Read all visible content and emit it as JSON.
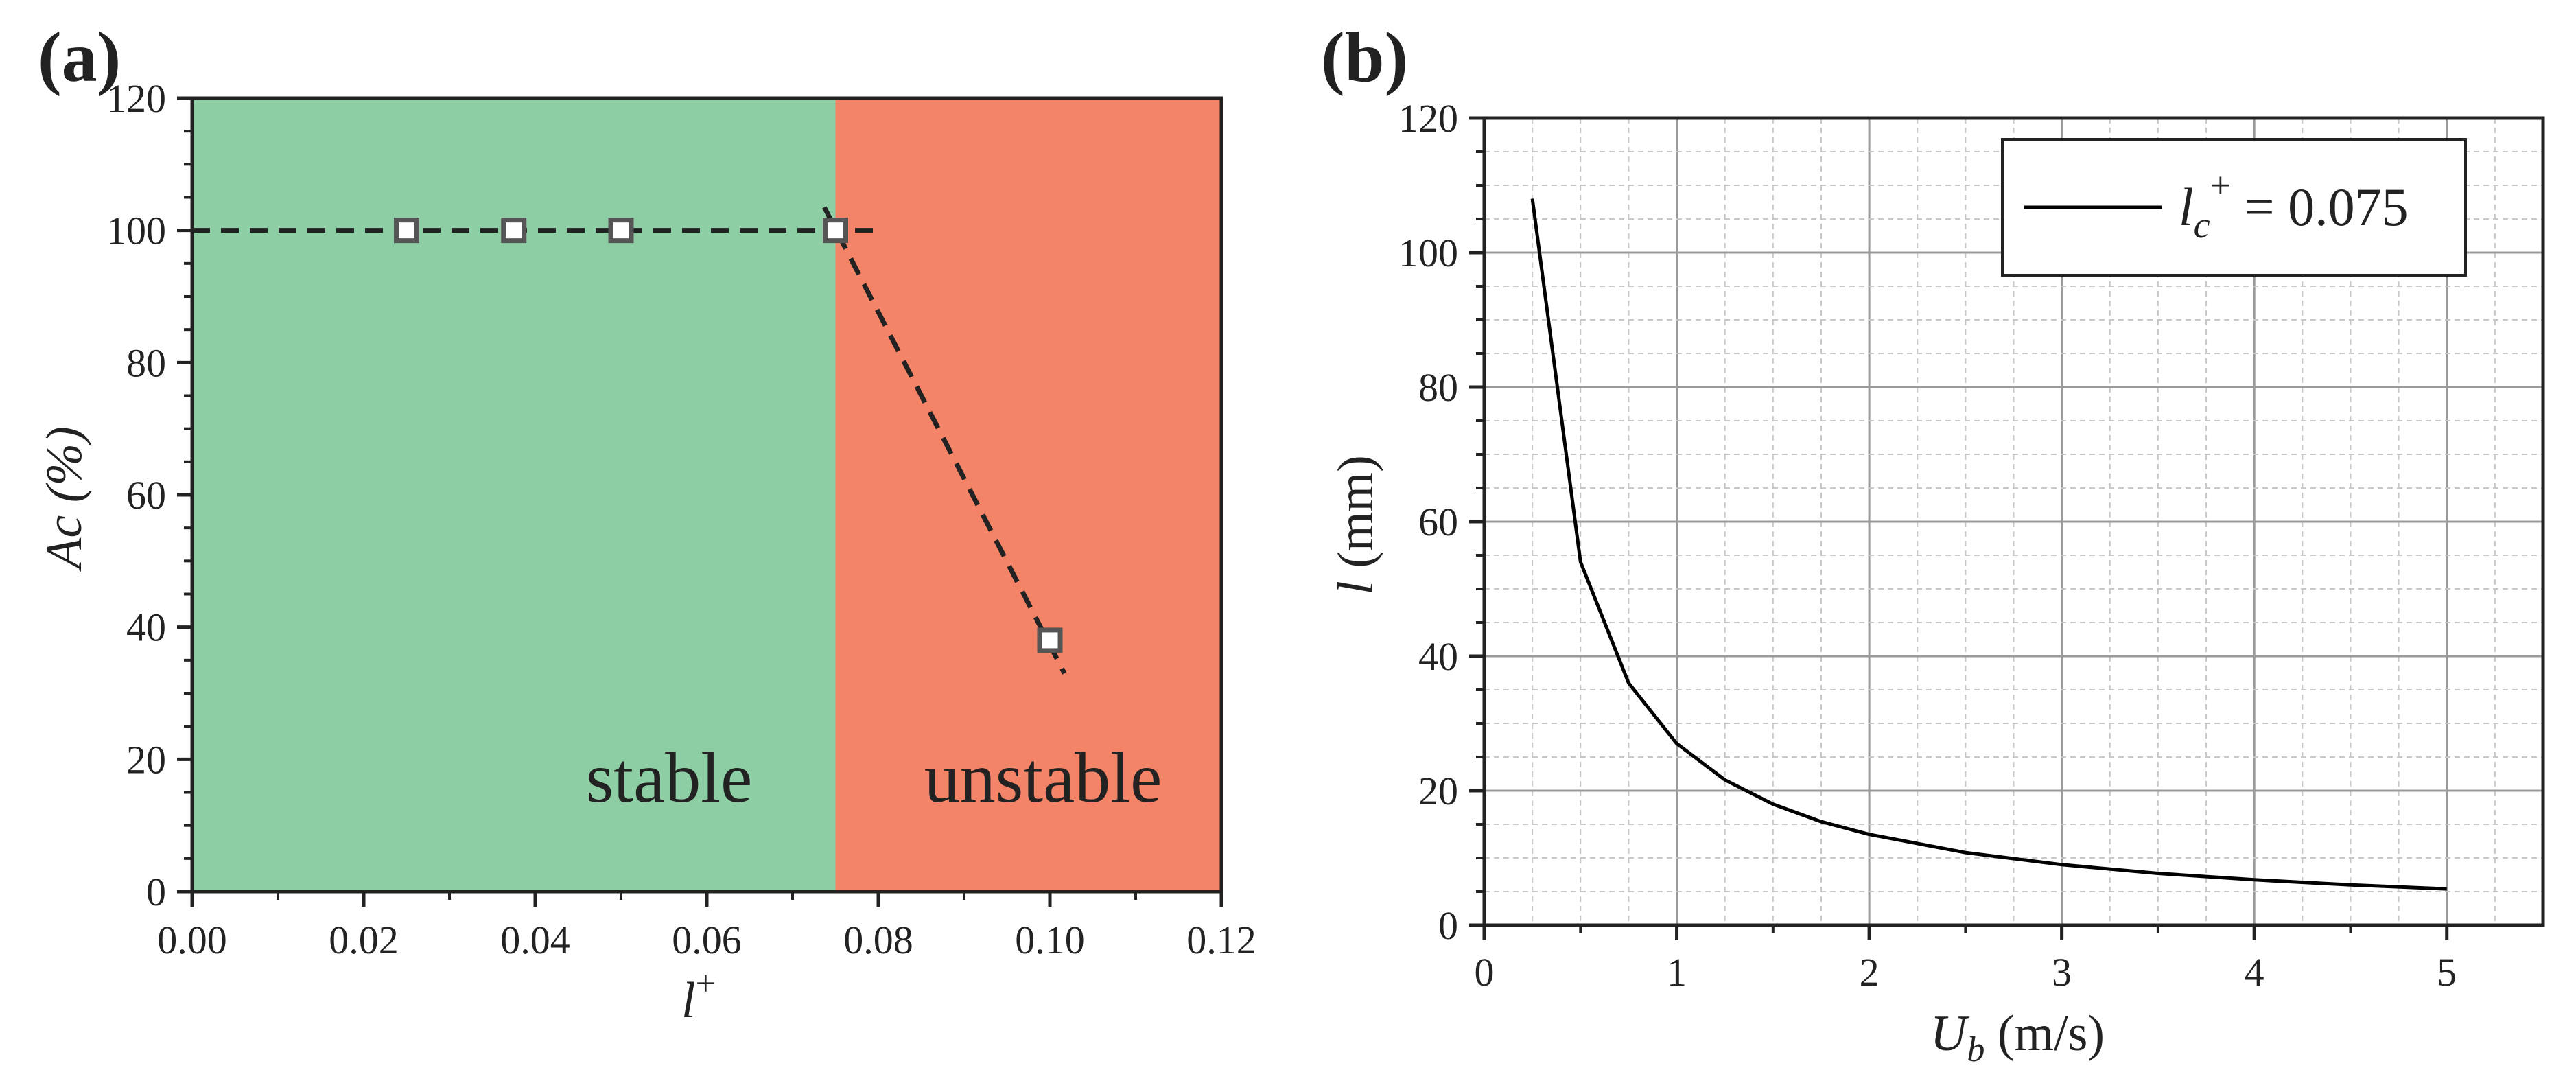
{
  "chart_data": [
    {
      "panel_label": "(a)",
      "type": "scatter",
      "xlabel": "l",
      "xlabel_sup": "+",
      "ylabel": "Ac (%)",
      "xlim": [
        0.0,
        0.12
      ],
      "ylim": [
        0,
        120
      ],
      "xticks": [
        0.0,
        0.02,
        0.04,
        0.06,
        0.08,
        0.1,
        0.12
      ],
      "xtick_labels": [
        "0.00",
        "0.02",
        "0.04",
        "0.06",
        "0.08",
        "0.10",
        "0.12"
      ],
      "yticks": [
        0,
        20,
        40,
        60,
        80,
        100,
        120
      ],
      "ytick_labels": [
        "0",
        "20",
        "40",
        "60",
        "80",
        "100",
        "120"
      ],
      "regions": [
        {
          "label": "stable",
          "x_from": 0.0,
          "x_to": 0.075,
          "color": "#8dcea4"
        },
        {
          "label": "unstable",
          "x_from": 0.075,
          "x_to": 0.12,
          "color": "#f38468"
        }
      ],
      "series": [
        {
          "name": "Ac",
          "x": [
            0.025,
            0.0375,
            0.05,
            0.075,
            0.1
          ],
          "y": [
            100,
            100,
            100,
            100,
            38
          ]
        }
      ],
      "guide_lines": [
        {
          "x": [
            0.0,
            0.08
          ],
          "y": [
            100,
            100
          ],
          "style": "dashed"
        },
        {
          "x": [
            0.0737,
            0.1017
          ],
          "y": [
            103.5,
            33
          ],
          "style": "dashed"
        }
      ]
    },
    {
      "panel_label": "(b)",
      "type": "line",
      "xlabel": "U",
      "xlabel_sub": "b",
      "xlabel_unit": " (m/s)",
      "ylabel_var": "l",
      "ylabel_unit": " (mm)",
      "xlim": [
        0,
        5.5
      ],
      "ylim": [
        0,
        120
      ],
      "xticks": [
        0,
        1,
        2,
        3,
        4,
        5
      ],
      "xtick_labels": [
        "0",
        "1",
        "2",
        "3",
        "4",
        "5"
      ],
      "yticks": [
        0,
        20,
        40,
        60,
        80,
        100,
        120
      ],
      "ytick_labels": [
        "0",
        "20",
        "40",
        "60",
        "80",
        "100",
        "120"
      ],
      "grid": true,
      "legend": {
        "var": "l",
        "sub": "c",
        "sup": "+",
        "rest": " = 0.075",
        "placement": "top-right"
      },
      "series": [
        {
          "name": "lc+ = 0.075",
          "x": [
            0.25,
            0.5,
            0.75,
            1.0,
            1.25,
            1.5,
            1.75,
            2.0,
            2.5,
            3.0,
            3.5,
            4.0,
            4.5,
            5.0
          ],
          "y": [
            108,
            54,
            36,
            27,
            21.6,
            18,
            15.4,
            13.5,
            10.8,
            9,
            7.7,
            6.75,
            6,
            5.4
          ]
        }
      ]
    }
  ]
}
